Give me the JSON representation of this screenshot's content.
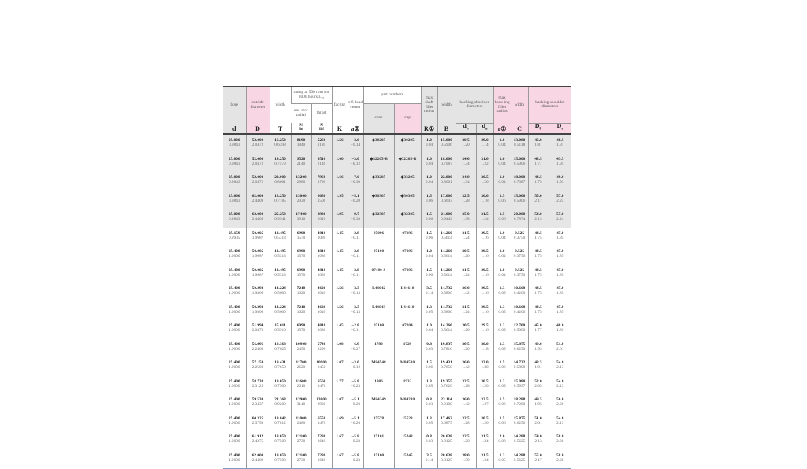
{
  "header": {
    "bore": "bore",
    "outside_diameter": "outside diameter",
    "width": "width",
    "rating": "rating at 500 rpm for 3000 hours L₁₀",
    "one_row_radial": "one-row radial",
    "thrust": "thrust",
    "factor": "fac-tor",
    "eff_load_center": "eff. load center",
    "part_numbers": "part numbers",
    "cone": "cone",
    "cup": "cup",
    "max_shaft_fillet_radius": "max shaft fillet radius",
    "width_b": "width",
    "backing_shoulder_diameters": "backing shoulder diameters",
    "max_housing_fillet_radius": "max hous-ing fillet radius",
    "width_c": "width",
    "backing_shoulder_diameters_2": "backing shoulder diameters",
    "symbols": {
      "d": "d",
      "D": "D",
      "T": "T",
      "N": "N",
      "lbf": "lbf",
      "K": "K",
      "a": "a②",
      "R": "R①",
      "B": "B",
      "db": "d",
      "db_sub": "b",
      "da": "d",
      "da_sub": "a",
      "r": "r①",
      "C": "C",
      "Db": "D",
      "Db_sub": "b",
      "Da": "D",
      "Da_sub": "a"
    }
  },
  "rows": [
    [
      [
        "25.000",
        "0.9843"
      ],
      [
        "52.000",
        "2.0472"
      ],
      [
        "16.250",
        "0.6398"
      ],
      [
        "8190",
        "1840"
      ],
      [
        "5260",
        "1180"
      ],
      [
        "1.56"
      ],
      [
        "−3.6",
        "−0.14"
      ],
      [
        "◆30205"
      ],
      [
        "◆30205"
      ],
      [
        "1.0",
        "0.04"
      ],
      [
        "15.000",
        "0.5906"
      ],
      [
        "30.5",
        "1.20"
      ],
      [
        "29.0",
        "1.14"
      ],
      [
        "1.0",
        "0.04"
      ],
      [
        "13.000",
        "0.5118"
      ],
      [
        "46.0",
        "1.81"
      ],
      [
        "48.5",
        "1.91"
      ]
    ],
    [
      [
        "25.000",
        "0.9843"
      ],
      [
        "52.000",
        "2.0472"
      ],
      [
        "19.250",
        "0.7579"
      ],
      [
        "9520",
        "2140"
      ],
      [
        "9510",
        "2140"
      ],
      [
        "1.00"
      ],
      [
        "−3.0",
        "−0.12"
      ],
      [
        "◆32205-B"
      ],
      [
        "◆32205-B"
      ],
      [
        "1.0",
        "0.04"
      ],
      [
        "18.000",
        "0.7087"
      ],
      [
        "34.0",
        "1.34"
      ],
      [
        "31.0",
        "1.22"
      ],
      [
        "1.0",
        "0.04"
      ],
      [
        "15.000",
        "0.5906"
      ],
      [
        "43.5",
        "1.71"
      ],
      [
        "49.5",
        "1.95"
      ]
    ],
    [
      [
        "25.000",
        "0.9843"
      ],
      [
        "52.000",
        "2.0472"
      ],
      [
        "22.000",
        "0.8661"
      ],
      [
        "13200",
        "2980"
      ],
      [
        "7960",
        "1790"
      ],
      [
        "1.66"
      ],
      [
        "−7.6",
        "−0.30"
      ],
      [
        "◆33205"
      ],
      [
        "◆33205"
      ],
      [
        "1.0",
        "0.04"
      ],
      [
        "22.000",
        "0.8661"
      ],
      [
        "34.0",
        "1.34"
      ],
      [
        "30.5",
        "1.20"
      ],
      [
        "1.0",
        "0.04"
      ],
      [
        "18.000",
        "0.7087"
      ],
      [
        "44.5",
        "1.75"
      ],
      [
        "49.0",
        "1.93"
      ]
    ],
    [
      [
        "25.000",
        "0.9843"
      ],
      [
        "62.000",
        "2.4409"
      ],
      [
        "18.250",
        "0.7185"
      ],
      [
        "13000",
        "2930"
      ],
      [
        "6680",
        "1500"
      ],
      [
        "1.95"
      ],
      [
        "−5.1",
        "−0.20"
      ],
      [
        "◆30305"
      ],
      [
        "◆30305"
      ],
      [
        "1.5",
        "0.06"
      ],
      [
        "17.000",
        "0.6693"
      ],
      [
        "32.5",
        "1.28"
      ],
      [
        "30.0",
        "1.18"
      ],
      [
        "1.5",
        "0.06"
      ],
      [
        "15.000",
        "0.5906"
      ],
      [
        "55.0",
        "2.17"
      ],
      [
        "57.0",
        "2.24"
      ]
    ],
    [
      [
        "25.000",
        "0.9843"
      ],
      [
        "62.000",
        "2.4409"
      ],
      [
        "25.250",
        "0.9941"
      ],
      [
        "17400",
        "3910"
      ],
      [
        "8930",
        "2010"
      ],
      [
        "1.95"
      ],
      [
        "−9.7",
        "−0.38"
      ],
      [
        "◆32305"
      ],
      [
        "◆32305"
      ],
      [
        "1.5",
        "0.06"
      ],
      [
        "24.000",
        "0.9449"
      ],
      [
        "35.0",
        "1.38"
      ],
      [
        "31.5",
        "1.24"
      ],
      [
        "1.5",
        "0.06"
      ],
      [
        "20.000",
        "0.7874"
      ],
      [
        "54.0",
        "2.13"
      ],
      [
        "57.0",
        "2.24"
      ]
    ],
    [
      [
        "25.159",
        "0.9905"
      ],
      [
        "50.005",
        "1.9687"
      ],
      [
        "13.495",
        "0.5313"
      ],
      [
        "6990",
        "1570"
      ],
      [
        "4810",
        "1080"
      ],
      [
        "1.45"
      ],
      [
        "−2.8",
        "−0.11"
      ],
      [
        "07096"
      ],
      [
        "07196"
      ],
      [
        "1.5",
        "0.06"
      ],
      [
        "14.260",
        "0.5614"
      ],
      [
        "31.5",
        "1.24"
      ],
      [
        "29.5",
        "1.16"
      ],
      [
        "1.0",
        "0.04"
      ],
      [
        "9.525",
        "0.3750"
      ],
      [
        "44.5",
        "1.75"
      ],
      [
        "47.0",
        "1.85"
      ]
    ],
    [
      [
        "25.400",
        "1.0000"
      ],
      [
        "50.005",
        "1.9687"
      ],
      [
        "13.495",
        "0.5313"
      ],
      [
        "6990",
        "1570"
      ],
      [
        "4810",
        "1080"
      ],
      [
        "1.45"
      ],
      [
        "−2.8",
        "−0.11"
      ],
      [
        "07100"
      ],
      [
        "07196"
      ],
      [
        "1.0",
        "0.04"
      ],
      [
        "14.260",
        "0.5614"
      ],
      [
        "30.5",
        "1.20"
      ],
      [
        "29.5",
        "1.16"
      ],
      [
        "1.0",
        "0.04"
      ],
      [
        "9.525",
        "0.3750"
      ],
      [
        "44.5",
        "1.75"
      ],
      [
        "47.0",
        "1.85"
      ]
    ],
    [
      [
        "25.400",
        "1.0000"
      ],
      [
        "50.005",
        "1.9687"
      ],
      [
        "13.495",
        "0.5313"
      ],
      [
        "6990",
        "1570"
      ],
      [
        "4810",
        "1080"
      ],
      [
        "1.45"
      ],
      [
        "−2.8",
        "−0.11"
      ],
      [
        "07100-S"
      ],
      [
        "07196"
      ],
      [
        "1.5",
        "0.06"
      ],
      [
        "14.260",
        "0.5614"
      ],
      [
        "31.5",
        "1.24"
      ],
      [
        "29.5",
        "1.16"
      ],
      [
        "1.0",
        "0.04"
      ],
      [
        "9.525",
        "0.3750"
      ],
      [
        "44.5",
        "1.75"
      ],
      [
        "47.0",
        "1.85"
      ]
    ],
    [
      [
        "25.400",
        "1.0000"
      ],
      [
        "50.292",
        "1.9800"
      ],
      [
        "14.224",
        "0.5600"
      ],
      [
        "7210",
        "1620"
      ],
      [
        "4620",
        "1040"
      ],
      [
        "1.56"
      ],
      [
        "−3.3",
        "−0.13"
      ],
      [
        "L44642"
      ],
      [
        "L44610"
      ],
      [
        "3.5",
        "0.14"
      ],
      [
        "14.732",
        "0.5800"
      ],
      [
        "36.0",
        "1.42"
      ],
      [
        "29.5",
        "1.16"
      ],
      [
        "1.3",
        "0.05"
      ],
      [
        "10.668",
        "0.4200"
      ],
      [
        "44.5",
        "1.75"
      ],
      [
        "47.0",
        "1.85"
      ]
    ],
    [
      [
        "25.400",
        "1.0000"
      ],
      [
        "50.292",
        "1.9800"
      ],
      [
        "14.224",
        "0.5600"
      ],
      [
        "7210",
        "1620"
      ],
      [
        "4620",
        "1040"
      ],
      [
        "1.56"
      ],
      [
        "−3.3",
        "−0.13"
      ],
      [
        "L44643"
      ],
      [
        "L44610"
      ],
      [
        "1.3",
        "0.05"
      ],
      [
        "14.732",
        "0.5800"
      ],
      [
        "31.5",
        "1.24"
      ],
      [
        "29.5",
        "1.16"
      ],
      [
        "1.3",
        "0.05"
      ],
      [
        "10.668",
        "0.4200"
      ],
      [
        "44.5",
        "1.75"
      ],
      [
        "47.0",
        "1.85"
      ]
    ],
    [
      [
        "25.400",
        "1.0000"
      ],
      [
        "51.994",
        "2.0470"
      ],
      [
        "15.011",
        "0.5910"
      ],
      [
        "6990",
        "1570"
      ],
      [
        "4810",
        "1080"
      ],
      [
        "1.45"
      ],
      [
        "−2.8",
        "−0.11"
      ],
      [
        "07100"
      ],
      [
        "07204"
      ],
      [
        "1.0",
        "0.04"
      ],
      [
        "14.260",
        "0.5614"
      ],
      [
        "30.5",
        "1.20"
      ],
      [
        "29.5",
        "1.16"
      ],
      [
        "1.3",
        "0.05"
      ],
      [
        "12.700",
        "0.5000"
      ],
      [
        "45.0",
        "1.77"
      ],
      [
        "48.0",
        "1.89"
      ]
    ],
    [
      [
        "25.400",
        "1.0000"
      ],
      [
        "56.896",
        "2.2400"
      ],
      [
        "19.368",
        "0.7625"
      ],
      [
        "10900",
        "2450"
      ],
      [
        "5740",
        "1290"
      ],
      [
        "1.90"
      ],
      [
        "−6.9",
        "−0.27"
      ],
      [
        "1780"
      ],
      [
        "1729"
      ],
      [
        "0.8",
        "0.03"
      ],
      [
        "19.837",
        "0.7810"
      ],
      [
        "30.5",
        "1.20"
      ],
      [
        "30.0",
        "1.18"
      ],
      [
        "1.3",
        "0.05"
      ],
      [
        "15.875",
        "0.6250"
      ],
      [
        "49.0",
        "1.93"
      ],
      [
        "51.0",
        "2.01"
      ]
    ],
    [
      [
        "25.400",
        "1.0000"
      ],
      [
        "57.150",
        "2.2500"
      ],
      [
        "19.431",
        "0.7650"
      ],
      [
        "11700",
        "2620"
      ],
      [
        "10900",
        "2450"
      ],
      [
        "1.07"
      ],
      [
        "−3.0",
        "−0.12"
      ],
      [
        "M84548"
      ],
      [
        "M84510"
      ],
      [
        "1.5",
        "0.06"
      ],
      [
        "19.431",
        "0.7650"
      ],
      [
        "36.0",
        "1.42"
      ],
      [
        "33.0",
        "1.30"
      ],
      [
        "1.5",
        "0.06"
      ],
      [
        "14.732",
        "0.5800"
      ],
      [
        "48.5",
        "1.91"
      ],
      [
        "54.0",
        "2.13"
      ]
    ],
    [
      [
        "25.400",
        "1.0000"
      ],
      [
        "58.738",
        "2.3125"
      ],
      [
        "19.050",
        "0.7500"
      ],
      [
        "11600",
        "2610"
      ],
      [
        "6560",
        "1470"
      ],
      [
        "1.77"
      ],
      [
        "−5.8",
        "−0.23"
      ],
      [
        "1986"
      ],
      [
        "1932"
      ],
      [
        "1.3",
        "0.05"
      ],
      [
        "19.355",
        "0.7620"
      ],
      [
        "32.5",
        "1.28"
      ],
      [
        "30.5",
        "1.20"
      ],
      [
        "1.3",
        "0.05"
      ],
      [
        "15.080",
        "0.5937"
      ],
      [
        "52.0",
        "2.05"
      ],
      [
        "54.0",
        "2.13"
      ]
    ],
    [
      [
        "25.400",
        "1.0000"
      ],
      [
        "59.530",
        "2.3437"
      ],
      [
        "23.368",
        "0.9200"
      ],
      [
        "13900",
        "3140"
      ],
      [
        "13000",
        "2930"
      ],
      [
        "1.07"
      ],
      [
        "−5.1",
        "−0.20"
      ],
      [
        "M84249"
      ],
      [
        "M84210"
      ],
      [
        "0.8",
        "0.03"
      ],
      [
        "23.114",
        "0.9100"
      ],
      [
        "36.0",
        "1.42"
      ],
      [
        "32.5",
        "1.27"
      ],
      [
        "1.5",
        "0.06"
      ],
      [
        "18.288",
        "0.7200"
      ],
      [
        "49.5",
        "1.95"
      ],
      [
        "56.0",
        "2.20"
      ]
    ],
    [
      [
        "25.400",
        "1.0000"
      ],
      [
        "60.325",
        "2.3750"
      ],
      [
        "19.842",
        "0.7812"
      ],
      [
        "11000",
        "2480"
      ],
      [
        "6550",
        "1470"
      ],
      [
        "1.69"
      ],
      [
        "−5.1",
        "−0.20"
      ],
      [
        "15578"
      ],
      [
        "15523"
      ],
      [
        "1.3",
        "0.05"
      ],
      [
        "17.462",
        "0.6875"
      ],
      [
        "32.5",
        "1.28"
      ],
      [
        "30.5",
        "1.20"
      ],
      [
        "1.5",
        "0.06"
      ],
      [
        "15.875",
        "0.6250"
      ],
      [
        "51.0",
        "2.01"
      ],
      [
        "54.0",
        "2.13"
      ]
    ],
    [
      [
        "25.400",
        "1.0000"
      ],
      [
        "61.912",
        "2.4375"
      ],
      [
        "19.050",
        "0.7500"
      ],
      [
        "12100",
        "2730"
      ],
      [
        "7280",
        "1640"
      ],
      [
        "1.67"
      ],
      [
        "−5.8",
        "−0.23"
      ],
      [
        "15101"
      ],
      [
        "15243"
      ],
      [
        "0.8",
        "0.03"
      ],
      [
        "20.638",
        "0.8125"
      ],
      [
        "32.5",
        "1.28"
      ],
      [
        "31.5",
        "1.24"
      ],
      [
        "2.0",
        "0.08"
      ],
      [
        "14.288",
        "0.5625"
      ],
      [
        "54.0",
        "2.13"
      ],
      [
        "58.0",
        "2.28"
      ]
    ],
    [
      [
        "25.400",
        "1.0000"
      ],
      [
        "62.000",
        "2.4409"
      ],
      [
        "19.050",
        "0.7500"
      ],
      [
        "12100",
        "2730"
      ],
      [
        "7280",
        "1640"
      ],
      [
        "1.67"
      ],
      [
        "−5.8",
        "−0.23"
      ],
      [
        "15100"
      ],
      [
        "15245"
      ],
      [
        "3.5",
        "0.14"
      ],
      [
        "20.638",
        "0.8125"
      ],
      [
        "38.0",
        "1.50"
      ],
      [
        "31.5",
        "1.24"
      ],
      [
        "1.3",
        "0.05"
      ],
      [
        "14.288",
        "0.5625"
      ],
      [
        "55.0",
        "2.17"
      ],
      [
        "58.0",
        "2.28"
      ]
    ]
  ]
}
